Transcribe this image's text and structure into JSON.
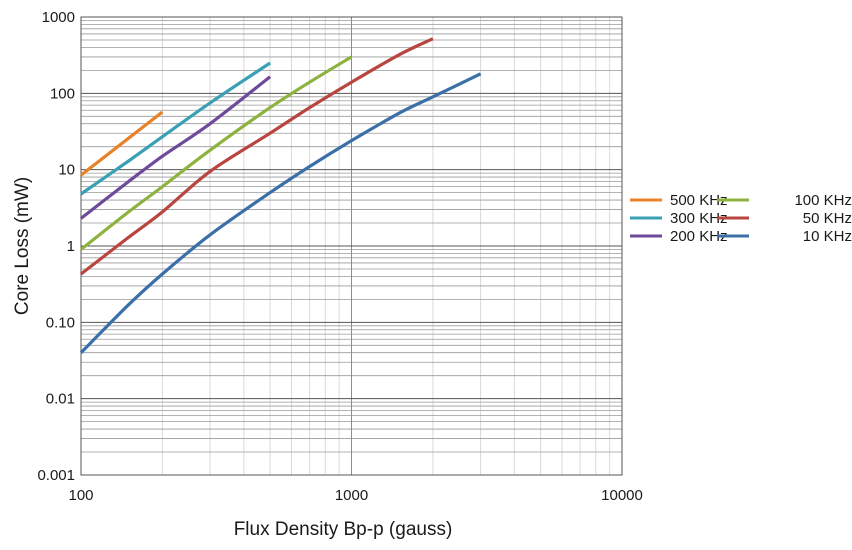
{
  "chart_data": {
    "type": "line",
    "title": "",
    "xlabel": "Flux Density Bp-p (gauss)",
    "ylabel": "Core Loss (mW)",
    "xscale": "log",
    "yscale": "log",
    "xlim": [
      100,
      10000
    ],
    "ylim": [
      0.001,
      1000
    ],
    "x_ticks": [
      "100",
      "1000",
      "10000"
    ],
    "y_ticks": [
      "0.001",
      "0.01",
      "0.10",
      "1",
      "10",
      "100",
      "1000"
    ],
    "grid": true,
    "legend_position": "right",
    "series": [
      {
        "name": "500 KHz",
        "color": "#e8822a",
        "x": [
          100,
          200
        ],
        "y": [
          8.5,
          57
        ]
      },
      {
        "name": "300 KHz",
        "color": "#3aa0b4",
        "x": [
          100,
          150,
          200,
          300,
          500
        ],
        "y": [
          4.8,
          13,
          27,
          75,
          250
        ]
      },
      {
        "name": "200 KHz",
        "color": "#6e4a9a",
        "x": [
          100,
          150,
          200,
          300,
          500
        ],
        "y": [
          2.3,
          7,
          15,
          40,
          165
        ]
      },
      {
        "name": "100 KHz",
        "color": "#8db33e",
        "x": [
          100,
          150,
          200,
          300,
          500,
          700,
          1000
        ],
        "y": [
          0.9,
          2.8,
          6,
          18,
          65,
          140,
          300
        ]
      },
      {
        "name": "50 KHz",
        "color": "#b84540",
        "x": [
          100,
          150,
          200,
          300,
          500,
          700,
          1000,
          1500,
          2000
        ],
        "y": [
          0.43,
          1.3,
          2.8,
          9.5,
          30,
          65,
          140,
          320,
          520
        ]
      },
      {
        "name": "10 KHz",
        "color": "#3b6fa8",
        "x": [
          100,
          150,
          200,
          300,
          500,
          700,
          1000,
          1500,
          2000,
          3000
        ],
        "y": [
          0.04,
          0.17,
          0.43,
          1.4,
          5,
          11,
          24,
          55,
          90,
          180
        ]
      }
    ]
  }
}
